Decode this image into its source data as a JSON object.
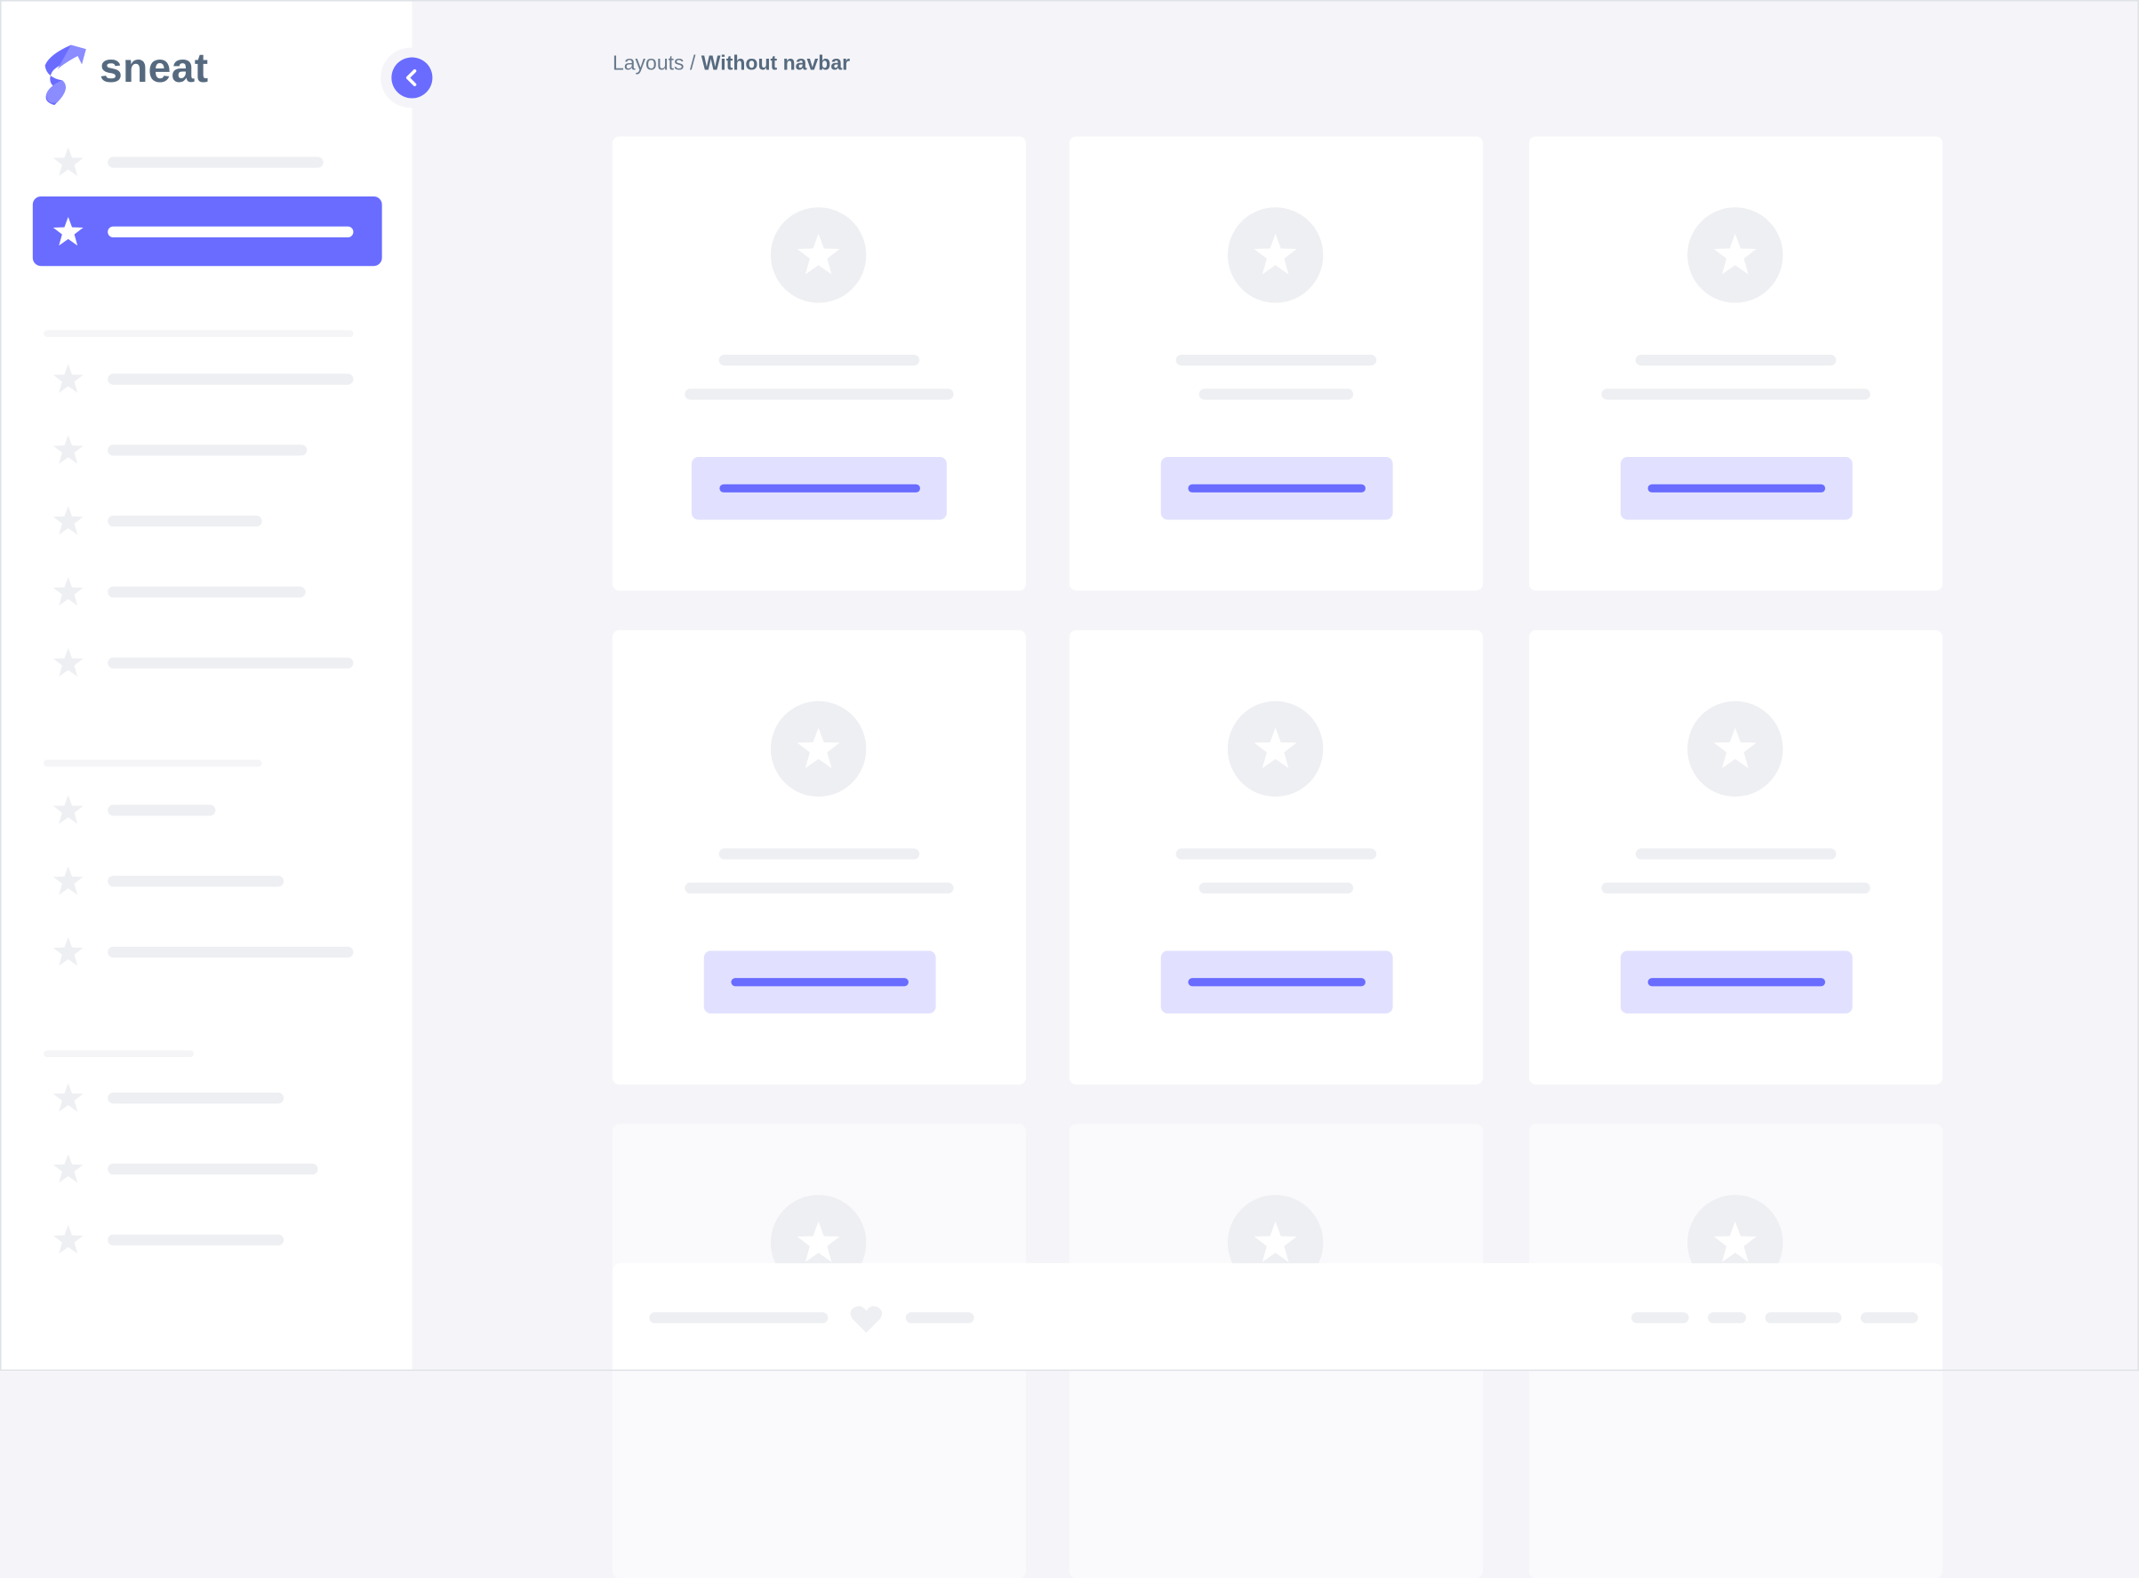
{
  "brand": {
    "name": "sneat",
    "logo_icon": "sneat-logo-icon"
  },
  "breadcrumb": {
    "parent": "Layouts",
    "separator": " / ",
    "current": "Without navbar"
  },
  "sidebar": {
    "toggle_icon": "chevron-left-icon",
    "item_icon": "star-icon",
    "active_index": 1
  },
  "footer": {
    "icon": "heart-icon"
  },
  "colors": {
    "primary": "#696cff",
    "primary_light": "#e1e1ff",
    "text": "#566a7f",
    "muted": "#697a8d",
    "background": "#f5f5f9",
    "skeleton": "#eeeff2"
  }
}
